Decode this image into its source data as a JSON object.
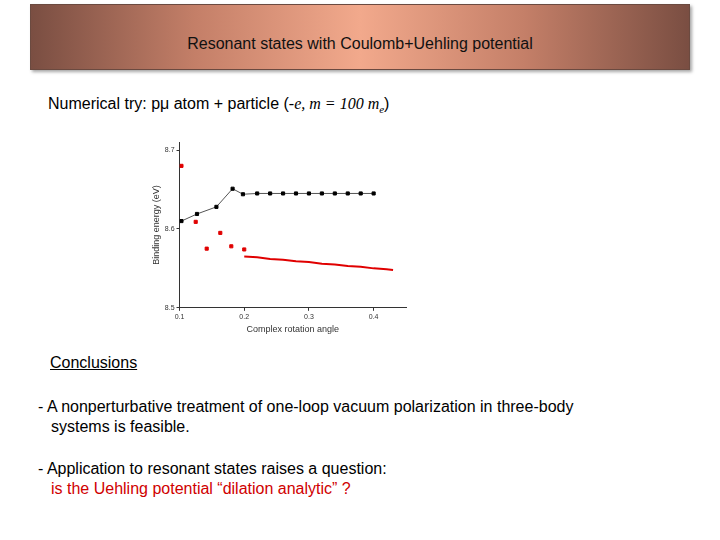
{
  "slide": {
    "header": "Resonant states with Coulomb+Uehling potential",
    "subtitle": {
      "prefix": "Numerical try: pμ atom + particle (",
      "formula": "-e, m = 100 m",
      "subscript": "e",
      "suffix": ")"
    },
    "conclusions": {
      "heading": "Conclusions",
      "bullet1": [
        "- A nonperturbative treatment of one-loop vacuum polarization in three-body",
        "systems is feasible."
      ],
      "bullet2": "- Application to resonant states raises a question:",
      "question": "is the Uehling potential “dilation analytic” ?"
    }
  },
  "chart_data": {
    "type": "scatter",
    "x_label": "Complex rotation angle",
    "y_label": "Binding energy (eV)",
    "xlim": [
      0.1,
      0.45
    ],
    "xticks": [
      0.1,
      0.2,
      0.3,
      0.4
    ],
    "ylim": [
      8.5,
      8.71
    ],
    "yticks": [
      8.5,
      8.6,
      8.7
    ],
    "grid": false,
    "series": [
      {
        "color": "#000000",
        "marker": "square",
        "line_style": "solid",
        "x": [
          0.103,
          0.127,
          0.157,
          0.182,
          0.198,
          0.22,
          0.24,
          0.26,
          0.28,
          0.3,
          0.32,
          0.34,
          0.36,
          0.38,
          0.4
        ],
        "values": [
          8.61,
          8.619,
          8.628,
          8.651,
          8.644,
          8.645,
          8.645,
          8.645,
          8.645,
          8.645,
          8.645,
          8.645,
          8.645,
          8.645,
          8.645
        ]
      },
      {
        "color": "#e00000",
        "marker": "square",
        "line_style": "none",
        "x": [
          0.103,
          0.125,
          0.142,
          0.163,
          0.18,
          0.2
        ],
        "values": [
          8.68,
          8.609,
          8.575,
          8.595,
          8.578,
          8.574
        ]
      },
      {
        "color": "#e00000",
        "marker": "none",
        "line_style": "solid",
        "x": [
          0.2,
          0.22,
          0.24,
          0.26,
          0.28,
          0.3,
          0.32,
          0.34,
          0.36,
          0.38,
          0.4,
          0.42,
          0.43
        ],
        "values": [
          8.565,
          8.564,
          8.562,
          8.561,
          8.559,
          8.558,
          8.556,
          8.555,
          8.553,
          8.552,
          8.55,
          8.549,
          8.548
        ]
      }
    ]
  }
}
